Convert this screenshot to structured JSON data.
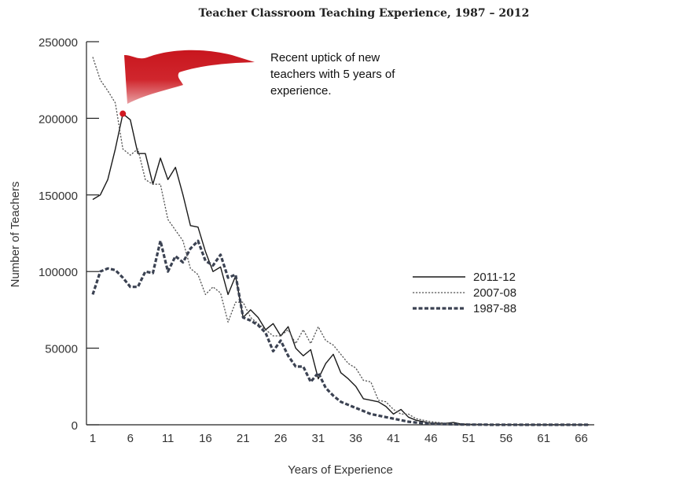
{
  "chart_data": {
    "type": "line",
    "title": "Teacher Classroom Teaching Experience, 1987 – 2012",
    "xlabel": "Years of Experience",
    "ylabel": "Number of Teachers",
    "xlim": [
      0,
      68
    ],
    "ylim": [
      0,
      250000
    ],
    "xticks": [
      1,
      6,
      11,
      16,
      21,
      26,
      31,
      36,
      41,
      46,
      51,
      56,
      61,
      66
    ],
    "yticks": [
      0,
      50000,
      100000,
      150000,
      200000,
      250000
    ],
    "ytick_labels": [
      "0",
      "50000",
      "100000",
      "150000",
      "200000",
      "250000"
    ],
    "legend_position": "middle-right",
    "annotation": {
      "lines": [
        "Recent uptick of new",
        "teachers with 5 years of",
        "experience."
      ],
      "point": {
        "x": 5,
        "y": 203000
      },
      "flag_color": "#c8161e"
    },
    "series": [
      {
        "name": "2011-12",
        "style": "solid",
        "color": "#1a1a1a",
        "x": [
          1,
          2,
          3,
          4,
          5,
          6,
          7,
          8,
          9,
          10,
          11,
          12,
          13,
          14,
          15,
          16,
          17,
          18,
          19,
          20,
          21,
          22,
          23,
          24,
          25,
          26,
          27,
          28,
          29,
          30,
          31,
          32,
          33,
          34,
          35,
          36,
          37,
          38,
          39,
          40,
          41,
          42,
          43,
          44,
          45,
          46,
          47,
          48,
          49,
          50,
          51,
          52,
          53,
          54,
          55,
          56,
          57,
          58,
          59,
          60,
          61,
          62,
          63,
          64,
          65,
          66,
          67
        ],
        "y": [
          147000,
          150000,
          160000,
          180000,
          203000,
          199000,
          177000,
          177000,
          157000,
          174000,
          160000,
          168000,
          150000,
          130000,
          129000,
          113000,
          100000,
          103000,
          85000,
          97000,
          70000,
          75000,
          70000,
          62000,
          66000,
          58000,
          64000,
          50000,
          45000,
          49000,
          30000,
          40000,
          46000,
          34000,
          30000,
          25000,
          17000,
          16000,
          15000,
          12000,
          7000,
          10000,
          5000,
          3000,
          2000,
          1000,
          1000,
          1000,
          1500,
          500,
          300,
          200,
          200,
          100,
          100,
          100,
          100,
          0,
          0,
          0,
          0,
          0,
          0,
          0,
          0,
          0,
          0
        ]
      },
      {
        "name": "2007-08",
        "style": "dotted",
        "color": "#555555",
        "x": [
          1,
          2,
          3,
          4,
          5,
          6,
          7,
          8,
          9,
          10,
          11,
          12,
          13,
          14,
          15,
          16,
          17,
          18,
          19,
          20,
          21,
          22,
          23,
          24,
          25,
          26,
          27,
          28,
          29,
          30,
          31,
          32,
          33,
          34,
          35,
          36,
          37,
          38,
          39,
          40,
          41,
          42,
          43,
          44,
          45,
          46,
          47,
          48,
          49,
          50,
          51,
          52,
          53,
          54,
          55,
          56,
          57,
          58,
          59,
          60,
          61,
          62,
          63,
          64,
          65,
          66,
          67
        ],
        "y": [
          240000,
          225000,
          218000,
          210000,
          180000,
          176000,
          180000,
          160000,
          157000,
          157000,
          134000,
          127000,
          120000,
          102000,
          98000,
          85000,
          90000,
          86000,
          67000,
          80000,
          80000,
          70000,
          66000,
          62000,
          58000,
          58000,
          62000,
          53000,
          62000,
          53000,
          64000,
          55000,
          52000,
          46000,
          40000,
          37000,
          29000,
          28000,
          16000,
          15000,
          10000,
          7000,
          7000,
          4000,
          3000,
          2000,
          1500,
          1000,
          800,
          600,
          400,
          300,
          200,
          100,
          100,
          100,
          0,
          0,
          0,
          0,
          0,
          0,
          0,
          0,
          0,
          0,
          0
        ]
      },
      {
        "name": "1987-88",
        "style": "dashed",
        "color": "#3b4252",
        "x": [
          1,
          2,
          3,
          4,
          5,
          6,
          7,
          8,
          9,
          10,
          11,
          12,
          13,
          14,
          15,
          16,
          17,
          18,
          19,
          20,
          21,
          22,
          23,
          24,
          25,
          26,
          27,
          28,
          29,
          30,
          31,
          32,
          33,
          34,
          35,
          36,
          37,
          38,
          39,
          40,
          41,
          42,
          43,
          44,
          45,
          46,
          47,
          48,
          49,
          50,
          51,
          52,
          53,
          54,
          55,
          56,
          57,
          58,
          59,
          60,
          61,
          62,
          63,
          64,
          65,
          66,
          67
        ],
        "y": [
          85000,
          100000,
          102000,
          101000,
          96000,
          90000,
          90000,
          100000,
          99000,
          120000,
          100000,
          110000,
          106000,
          115000,
          120000,
          107000,
          104000,
          111000,
          96000,
          98000,
          70000,
          68000,
          65000,
          60000,
          48000,
          55000,
          45000,
          38000,
          38000,
          28000,
          34000,
          24000,
          19000,
          15000,
          13000,
          11000,
          9000,
          7000,
          6000,
          5000,
          4000,
          3000,
          2000,
          1500,
          1000,
          700,
          500,
          400,
          300,
          200,
          100,
          100,
          100,
          0,
          0,
          0,
          0,
          0,
          0,
          0,
          0,
          0,
          0,
          0,
          0,
          0,
          0
        ]
      }
    ]
  }
}
